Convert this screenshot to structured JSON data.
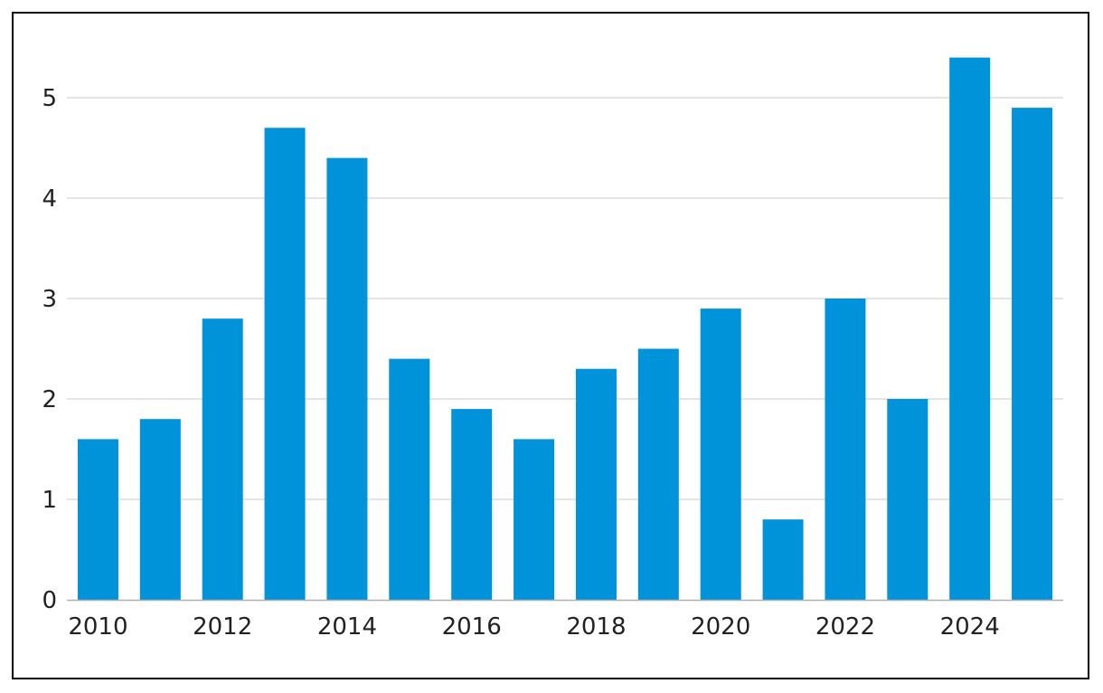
{
  "chart_data": {
    "type": "bar",
    "title": "",
    "xlabel": "",
    "ylabel": "",
    "categories": [
      "2010",
      "2011",
      "2012",
      "2013",
      "2014",
      "2015",
      "2016",
      "2017",
      "2018",
      "2019",
      "2020",
      "2021",
      "2022",
      "2023",
      "2024",
      "2025"
    ],
    "values": [
      1.6,
      1.8,
      2.8,
      4.7,
      4.4,
      2.4,
      1.9,
      1.6,
      2.3,
      2.5,
      2.9,
      0.8,
      3.0,
      2.0,
      5.4,
      4.9
    ],
    "x_tick_labels": [
      "2010",
      "2012",
      "2014",
      "2016",
      "2018",
      "2020",
      "2022",
      "2024"
    ],
    "y_ticks": [
      0,
      1,
      2,
      3,
      4,
      5
    ],
    "ylim": [
      0,
      5.5
    ],
    "grid": true,
    "bar_color": "#0093d9",
    "grid_color": "#c8c8c8",
    "axis_color": "#b0b0b0"
  }
}
